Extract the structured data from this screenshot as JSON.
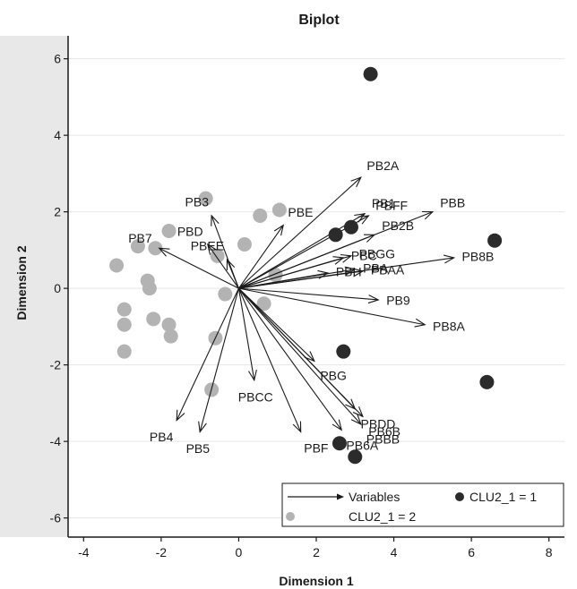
{
  "chart_data": {
    "type": "scatter",
    "title": "Biplot",
    "xlabel": "Dimension 1",
    "ylabel": "Dimension 2",
    "xlim": [
      -4.4,
      8.4
    ],
    "ylim": [
      -6.5,
      6.6
    ],
    "xticks": [
      -4,
      -2,
      0,
      2,
      4,
      6,
      8
    ],
    "yticks": [
      -6,
      -4,
      -2,
      0,
      2,
      4,
      6
    ],
    "grid": true,
    "legend_position": "bottom-right",
    "colors": {
      "arrow": "#1a1a1a",
      "cluster1": "#2b2b2b",
      "cluster2": "#b3b3b3",
      "grid": "#e6e6e6",
      "outer_background": "#e8e8e8"
    },
    "legend": {
      "variables": "Variables",
      "cluster1": "CLU2_1 = 1",
      "cluster2": "CLU2_1 = 2"
    },
    "variables": [
      {
        "name": "PB2A",
        "x": 3.15,
        "y": 2.9
      },
      {
        "name": "PB1",
        "x": 3.25,
        "y": 1.95
      },
      {
        "name": "PBFF",
        "x": 3.35,
        "y": 1.9
      },
      {
        "name": "PBB",
        "x": 5.0,
        "y": 2.0
      },
      {
        "name": "PB2B",
        "x": 3.5,
        "y": 1.4
      },
      {
        "name": "PB8B",
        "x": 5.55,
        "y": 0.8
      },
      {
        "name": "PBGG",
        "x": 2.9,
        "y": 0.85
      },
      {
        "name": "PBC",
        "x": 2.7,
        "y": 0.8
      },
      {
        "name": "PBH",
        "x": 2.3,
        "y": 0.4
      },
      {
        "name": "PBA",
        "x": 3.0,
        "y": 0.5
      },
      {
        "name": "PBAA",
        "x": 3.2,
        "y": 0.45
      },
      {
        "name": "PB9",
        "x": 3.6,
        "y": -0.3
      },
      {
        "name": "PB8A",
        "x": 4.8,
        "y": -0.95
      },
      {
        "name": "PBE",
        "x": 1.15,
        "y": 1.65
      },
      {
        "name": "PB3",
        "x": -0.7,
        "y": 1.9
      },
      {
        "name": "PBD",
        "x": -0.8,
        "y": 1.15
      },
      {
        "name": "PBEE",
        "x": -0.3,
        "y": 0.75
      },
      {
        "name": "PB7",
        "x": -2.05,
        "y": 1.05
      },
      {
        "name": "PBG",
        "x": 1.95,
        "y": -1.9
      },
      {
        "name": "PBCC",
        "x": 0.4,
        "y": -2.4
      },
      {
        "name": "PB4",
        "x": -1.6,
        "y": -3.45
      },
      {
        "name": "PB5",
        "x": -1.0,
        "y": -3.75
      },
      {
        "name": "PBF",
        "x": 1.6,
        "y": -3.75
      },
      {
        "name": "PBDD",
        "x": 3.0,
        "y": -3.15
      },
      {
        "name": "PB6B",
        "x": 3.2,
        "y": -3.35
      },
      {
        "name": "PBBB",
        "x": 3.15,
        "y": -3.55
      },
      {
        "name": "PB6A",
        "x": 2.65,
        "y": -3.7
      }
    ],
    "series": [
      {
        "name": "CLU2_1 = 1",
        "points": [
          {
            "x": 3.4,
            "y": 5.6
          },
          {
            "x": 2.5,
            "y": 1.4
          },
          {
            "x": 2.9,
            "y": 1.6
          },
          {
            "x": 6.6,
            "y": 1.25
          },
          {
            "x": 2.7,
            "y": -1.65
          },
          {
            "x": 6.4,
            "y": -2.45
          },
          {
            "x": 2.6,
            "y": -4.05
          },
          {
            "x": 3.0,
            "y": -4.4
          }
        ]
      },
      {
        "name": "CLU2_1 = 2",
        "points": [
          {
            "x": -0.85,
            "y": 2.35
          },
          {
            "x": 0.55,
            "y": 1.9
          },
          {
            "x": 1.05,
            "y": 2.05
          },
          {
            "x": -1.8,
            "y": 1.5
          },
          {
            "x": -2.6,
            "y": 1.1
          },
          {
            "x": -2.15,
            "y": 1.05
          },
          {
            "x": 0.15,
            "y": 1.15
          },
          {
            "x": -0.55,
            "y": 0.85
          },
          {
            "x": 0.95,
            "y": 0.35
          },
          {
            "x": -3.15,
            "y": 0.6
          },
          {
            "x": -2.35,
            "y": 0.2
          },
          {
            "x": -2.3,
            "y": 0.0
          },
          {
            "x": -0.35,
            "y": -0.15
          },
          {
            "x": 0.65,
            "y": -0.4
          },
          {
            "x": -2.95,
            "y": -0.55
          },
          {
            "x": -2.95,
            "y": -0.95
          },
          {
            "x": -2.2,
            "y": -0.8
          },
          {
            "x": -1.8,
            "y": -0.95
          },
          {
            "x": -1.75,
            "y": -1.25
          },
          {
            "x": -0.6,
            "y": -1.3
          },
          {
            "x": -2.95,
            "y": -1.65
          },
          {
            "x": -0.7,
            "y": -2.65
          }
        ]
      }
    ]
  }
}
